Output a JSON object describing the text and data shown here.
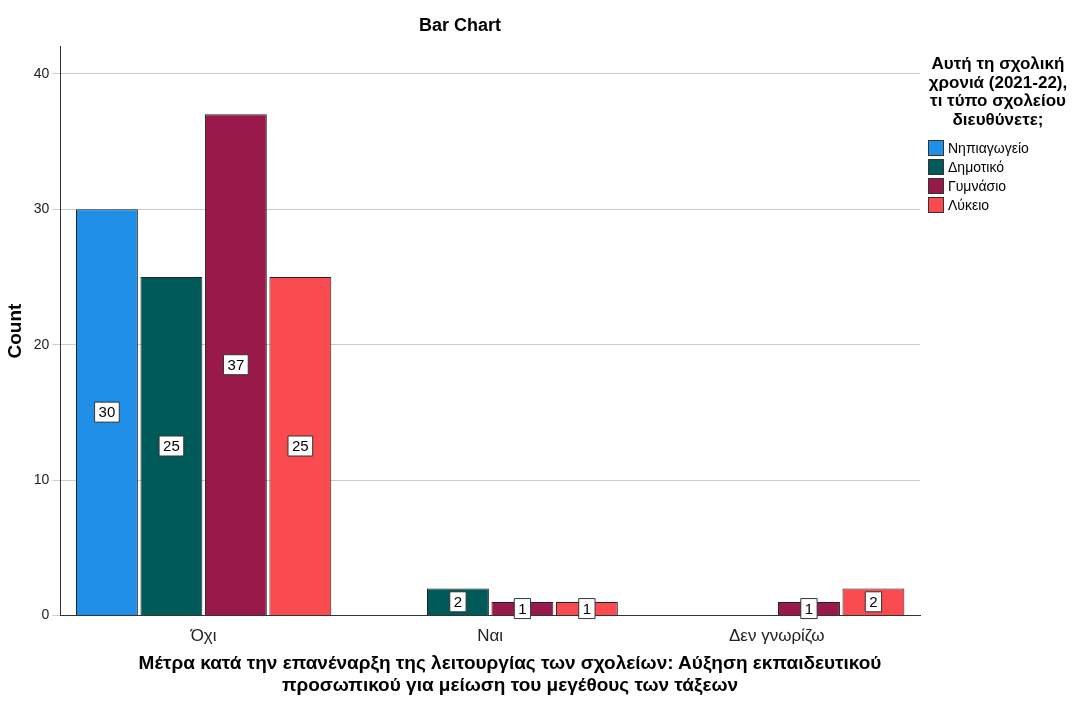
{
  "chart_data": {
    "type": "bar",
    "title": "Bar Chart",
    "xlabel": "Μέτρα κατά την επανέναρξη της λειτουργίας των σχολείων: Αύξηση εκπαιδευτικού προσωπικού για μείωση του μεγέθους των τάξεων",
    "ylabel": "Count",
    "legend_title": "Αυτή τη σχολική χρονιά (2021-22), τι τύπο σχολείου διευθύνετε;",
    "categories": [
      "Όχι",
      "Ναι",
      "Δεν γνωρίζω"
    ],
    "series": [
      {
        "name": "Νηπιαγωγείο",
        "color": "#1f8fe8",
        "values": [
          30,
          null,
          null
        ]
      },
      {
        "name": "Δημοτικό",
        "color": "#005a5a",
        "values": [
          25,
          2,
          null
        ]
      },
      {
        "name": "Γυμνάσιο",
        "color": "#991a4a",
        "values": [
          37,
          1,
          1
        ]
      },
      {
        "name": "Λύκειο",
        "color": "#f94b50",
        "values": [
          25,
          1,
          2
        ]
      }
    ],
    "ylim": [
      0,
      42
    ],
    "yticks": [
      0,
      10,
      20,
      30,
      40
    ],
    "grid": "y",
    "legend": "right",
    "data_labels": true
  }
}
